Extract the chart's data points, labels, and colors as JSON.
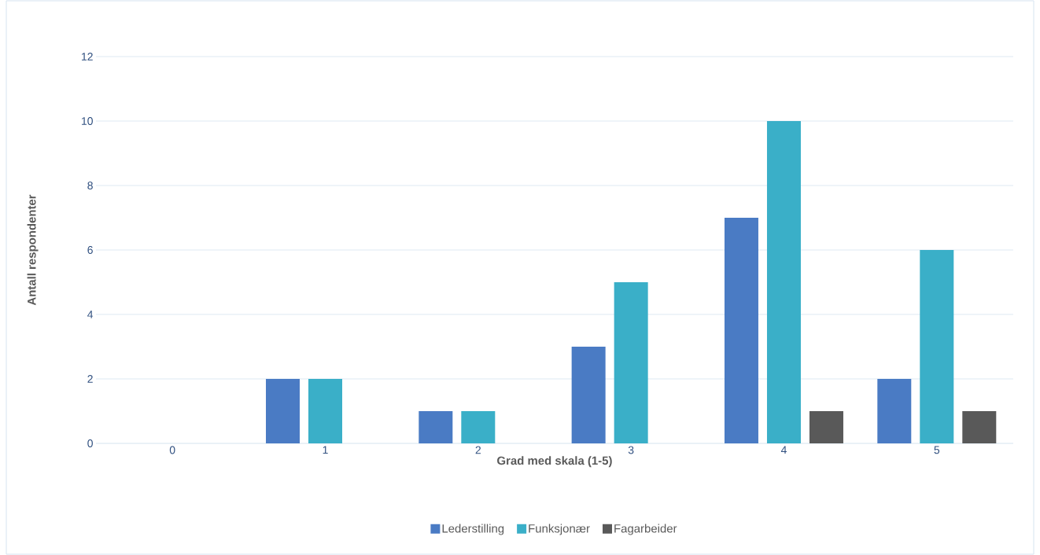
{
  "chart_data": {
    "type": "bar",
    "xlabel": "Grad med skala (1-5)",
    "ylabel": "Antall respondenter",
    "categories": [
      "0",
      "1",
      "2",
      "3",
      "4",
      "5"
    ],
    "series": [
      {
        "name": "Lederstilling",
        "color": "#4a7bc4",
        "values": [
          0,
          2,
          1,
          3,
          7,
          2
        ]
      },
      {
        "name": "Funksjonær",
        "color": "#3aafc8",
        "values": [
          0,
          2,
          1,
          5,
          10,
          6
        ]
      },
      {
        "name": "Fagarbeider",
        "color": "#595959",
        "values": [
          0,
          0,
          0,
          0,
          1,
          1
        ]
      }
    ],
    "ylim": [
      0,
      12
    ],
    "yticks": [
      0,
      2,
      4,
      6,
      8,
      10,
      12
    ],
    "grid": "y",
    "legend": "bottom"
  }
}
